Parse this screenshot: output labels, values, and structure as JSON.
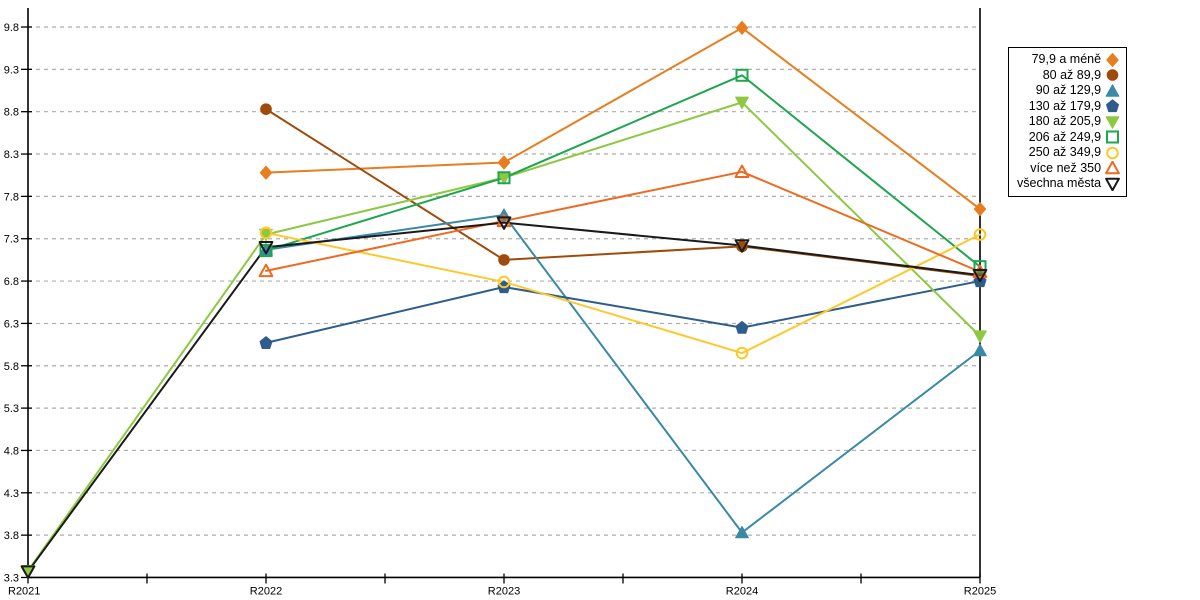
{
  "chart_data": {
    "type": "line",
    "title": "",
    "x_labels": [
      "R2021",
      "R2022",
      "R2023",
      "R2024",
      "R2025"
    ],
    "y_axis": {
      "min": 3.3,
      "max": 9.8,
      "step": 0.5,
      "tick_format": "one-decimal"
    },
    "grid": {
      "horizontal": true,
      "style": "dashed",
      "color": "#ADADAD"
    },
    "legend": {
      "position": "top-right-outside",
      "border_color": "#000000",
      "background": "#FFFFFF"
    },
    "axis_color": "#000000",
    "series": [
      {
        "name": "79,9 a méně",
        "color": "#E87D1E",
        "marker": "diamond",
        "marker_fill": "solid",
        "values": [
          null,
          8.08,
          8.2,
          9.79,
          7.65
        ]
      },
      {
        "name": "80 až 89,9",
        "color": "#9E4B0C",
        "marker": "circle",
        "marker_fill": "solid",
        "values": [
          null,
          8.83,
          7.05,
          7.21,
          6.86
        ]
      },
      {
        "name": "90 až 129,9",
        "color": "#3A89A5",
        "marker": "triangle-up",
        "marker_fill": "solid",
        "values": [
          null,
          7.17,
          7.58,
          3.83,
          5.98
        ]
      },
      {
        "name": "130 až 179,9",
        "color": "#2E5D8C",
        "marker": "pentagon",
        "marker_fill": "solid",
        "values": [
          null,
          6.07,
          6.73,
          6.25,
          6.8
        ]
      },
      {
        "name": "180 až 205,9",
        "color": "#8CC940",
        "marker": "triangle-down",
        "marker_fill": "solid",
        "values": [
          3.38,
          7.35,
          8.02,
          8.91,
          6.15
        ]
      },
      {
        "name": "206 až 249,9",
        "color": "#1EA64E",
        "marker": "square",
        "marker_fill": "open",
        "values": [
          null,
          7.16,
          8.02,
          9.23,
          6.97
        ]
      },
      {
        "name": "250 až 349,9",
        "color": "#FFC82A",
        "marker": "circle",
        "marker_fill": "open",
        "values": [
          null,
          7.37,
          6.79,
          5.95,
          7.35
        ]
      },
      {
        "name": "více než 350",
        "color": "#EE6A20",
        "marker": "triangle-up",
        "marker_fill": "open",
        "values": [
          null,
          6.92,
          7.51,
          8.09,
          6.91
        ]
      },
      {
        "name": "všechna města",
        "color": "#1A1A1A",
        "marker": "triangle-down",
        "marker_fill": "open",
        "values": [
          3.37,
          7.2,
          7.49,
          7.22,
          6.87
        ]
      }
    ]
  }
}
